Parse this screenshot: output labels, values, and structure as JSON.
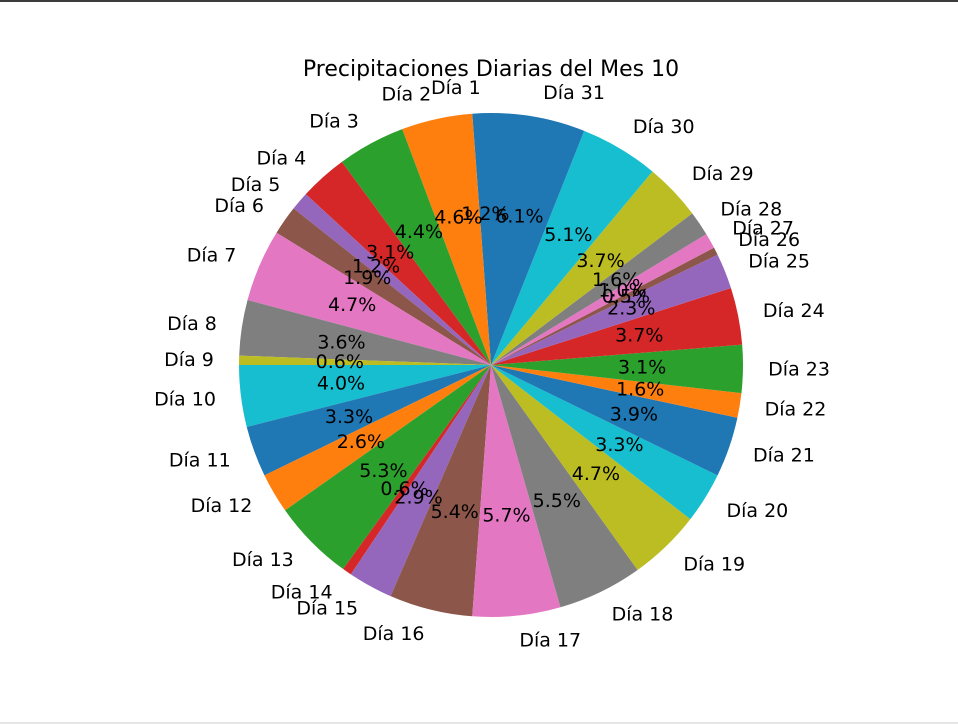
{
  "chart_data": {
    "type": "pie",
    "title": "Precipitaciones Diarias del Mes 10",
    "start_angle_deg": 90,
    "direction": "counterclockwise",
    "labels": [
      "Día 1",
      "Día 2",
      "Día 3",
      "Día 4",
      "Día 5",
      "Día 6",
      "Día 7",
      "Día 8",
      "Día 9",
      "Día 10",
      "Día 11",
      "Día 12",
      "Día 13",
      "Día 14",
      "Día 15",
      "Día 16",
      "Día 17",
      "Día 18",
      "Día 19",
      "Día 20",
      "Día 21",
      "Día 22",
      "Día 23",
      "Día 24",
      "Día 25",
      "Día 26",
      "Día 27",
      "Día 28",
      "Día 29",
      "Día 30",
      "Día 31"
    ],
    "values": [
      1.2,
      4.6,
      4.4,
      3.1,
      1.2,
      1.9,
      4.7,
      3.6,
      0.6,
      4.0,
      3.3,
      2.6,
      5.3,
      0.6,
      2.9,
      5.4,
      5.7,
      5.5,
      4.7,
      3.3,
      3.9,
      1.6,
      3.1,
      3.7,
      2.3,
      0.5,
      1.0,
      1.6,
      3.7,
      5.1,
      6.1
    ],
    "percent_labels": [
      "1.2%",
      "4.6%",
      "4.4%",
      "3.1%",
      "1.2%",
      "1.9%",
      "4.7%",
      "3.6%",
      "0.6%",
      "4.0%",
      "3.3%",
      "2.6%",
      "5.3%",
      "0.6%",
      "2.9%",
      "5.4%",
      "5.7%",
      "5.5%",
      "4.7%",
      "3.3%",
      "3.9%",
      "1.6%",
      "3.1%",
      "3.7%",
      "2.3%",
      "0.5%",
      "1.0%",
      "1.6%",
      "3.7%",
      "5.1%",
      "6.1%"
    ],
    "colors": [
      "#1f77b4",
      "#ff7f0e",
      "#2ca02c",
      "#d62728",
      "#9467bd",
      "#8c564b",
      "#e377c2",
      "#7f7f7f",
      "#bcbd22",
      "#17becf"
    ]
  }
}
